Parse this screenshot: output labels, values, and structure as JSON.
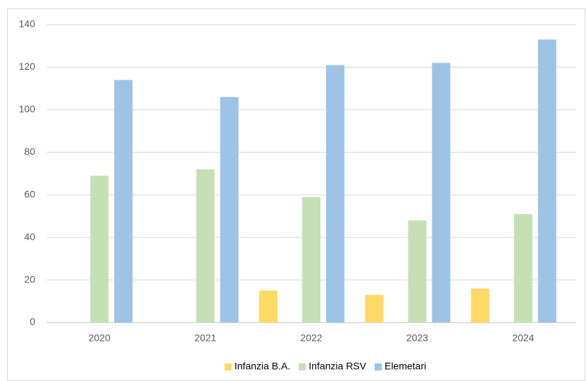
{
  "chart_data": {
    "type": "bar",
    "categories": [
      "2020",
      "2021",
      "2022",
      "2023",
      "2024"
    ],
    "series": [
      {
        "name": "Infanzia B.A.",
        "color": "#ffd966",
        "values": [
          null,
          null,
          15,
          13,
          16
        ]
      },
      {
        "name": "Infanzia RSV",
        "color": "#c5e0b4",
        "values": [
          69,
          72,
          59,
          48,
          51
        ]
      },
      {
        "name": "Elemetari",
        "color": "#9dc3e6",
        "values": [
          114,
          106,
          121,
          122,
          133
        ]
      }
    ],
    "ylim": [
      0,
      140
    ],
    "yticks": [
      0,
      20,
      40,
      60,
      80,
      100,
      120,
      140
    ],
    "grid": true,
    "legend": "bottom"
  }
}
